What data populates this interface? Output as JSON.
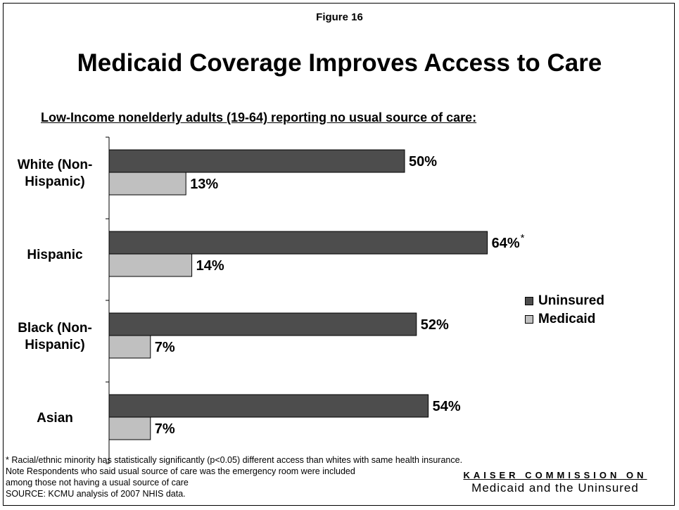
{
  "figure_label": "Figure 16",
  "title": "Medicaid Coverage Improves Access to Care",
  "subtitle": "Low-Income nonelderly adults (19-64) reporting no usual source of care:",
  "legend": [
    {
      "name": "Uninsured",
      "color": "#4d4d4d"
    },
    {
      "name": "Medicaid",
      "color": "#c0c0c0"
    }
  ],
  "footnotes": [
    "* Racial/ethnic minority has statistically significantly (p<0.05) different access than whites with same health insurance.",
    "Note Respondents who said usual source of care was the emergency room were included",
    "among those not having a usual source of care",
    "SOURCE: KCMU analysis of 2007 NHIS data."
  ],
  "logo": {
    "line1": "KAISER COMMISSION ON",
    "line2": "Medicaid and the Uninsured"
  },
  "chart_data": {
    "type": "bar",
    "orientation": "horizontal",
    "categories": [
      [
        "White (Non-",
        "Hispanic)"
      ],
      [
        "Hispanic"
      ],
      [
        "Black (Non-",
        "Hispanic)"
      ],
      [
        "Asian"
      ]
    ],
    "series": [
      {
        "name": "Uninsured",
        "color": "#4d4d4d",
        "values": [
          50,
          64,
          52,
          54
        ],
        "labels": [
          "50%",
          "64%",
          "52%",
          "54%"
        ],
        "markers": [
          "",
          "*",
          "",
          ""
        ]
      },
      {
        "name": "Medicaid",
        "color": "#c0c0c0",
        "values": [
          13,
          14,
          7,
          7
        ],
        "labels": [
          "13%",
          "14%",
          "7%",
          "7%"
        ],
        "markers": [
          "",
          "",
          "",
          ""
        ]
      }
    ],
    "unit": "%",
    "xlim": [
      0,
      100
    ],
    "grid": false,
    "legend_position": "right"
  }
}
